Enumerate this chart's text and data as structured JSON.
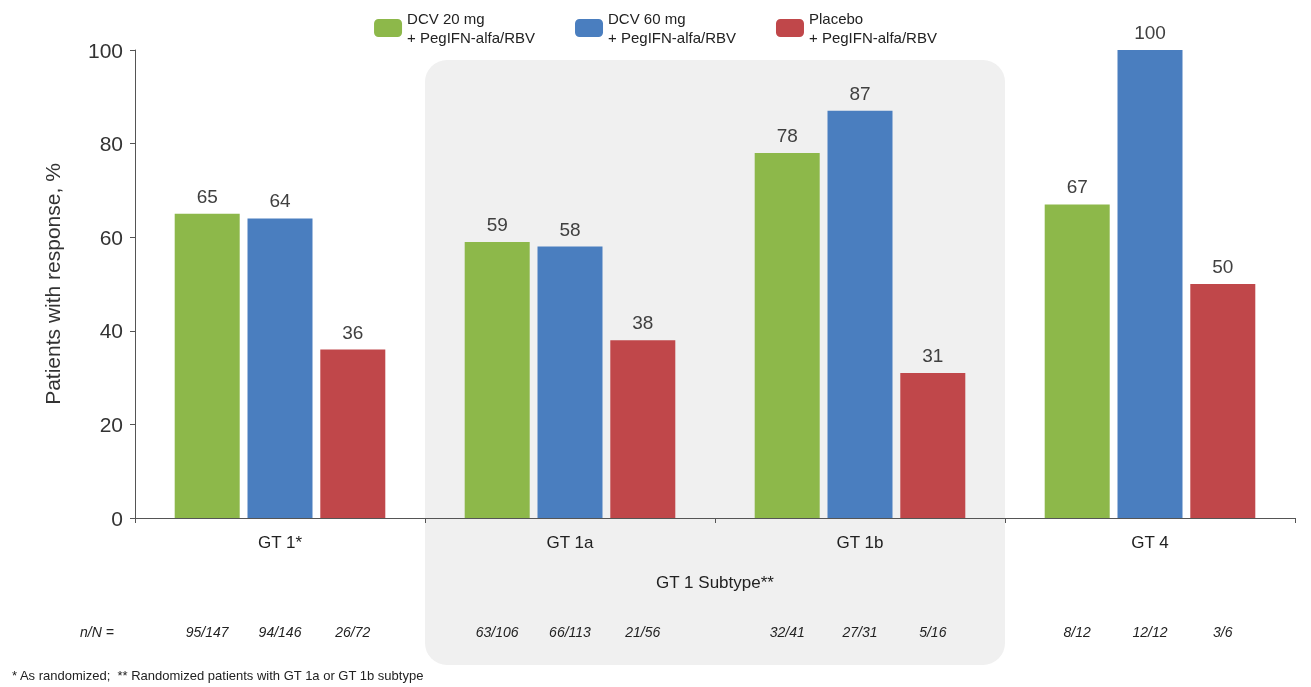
{
  "chart_data": {
    "type": "bar",
    "ylabel": "Patients with response, %",
    "categories": [
      "GT 1*",
      "GT 1a",
      "GT 1b",
      "GT 4"
    ],
    "series": [
      {
        "name": "DCV 20 mg\n+ PegIFN-alfa/RBV",
        "color": "#8db84a",
        "values": [
          65,
          59,
          78,
          67
        ]
      },
      {
        "name": "DCV 60 mg\n+ PegIFN-alfa/RBV",
        "color": "#4a7ebf",
        "values": [
          64,
          58,
          87,
          100
        ]
      },
      {
        "name": "Placebo\n+ PegIFN-alfa/RBV",
        "color": "#c0474a",
        "values": [
          36,
          38,
          31,
          50
        ]
      }
    ],
    "ylim": [
      0,
      100
    ],
    "yticks": [
      0,
      20,
      40,
      60,
      80,
      100
    ],
    "data_labels": true,
    "grid": false,
    "legend": "top",
    "bands": [
      {
        "axis": "x",
        "from": "GT 1a",
        "to": "GT 1b",
        "label": "GT 1 Subtype**",
        "color": "#f0f0f0"
      }
    ],
    "annotations": [
      "n/N =",
      "95/147",
      "94/146",
      "26/72",
      "63/106",
      "66/113",
      "21/56",
      "32/41",
      "27/31",
      "5/16",
      "8/12",
      "12/12",
      "3/6",
      "* As randomized;  ** Randomized patients with GT 1a or GT 1b subtype"
    ]
  }
}
